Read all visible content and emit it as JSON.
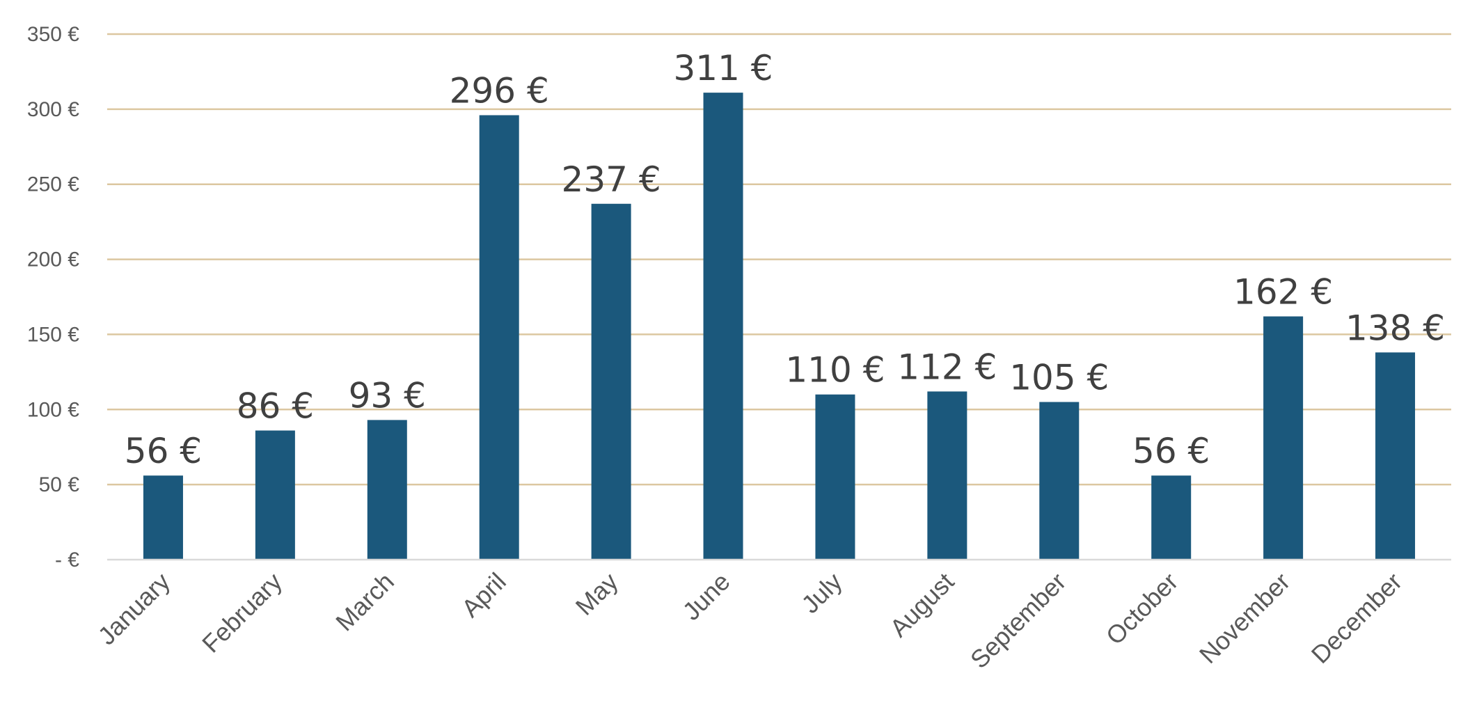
{
  "chart_data": {
    "type": "bar",
    "categories": [
      "January",
      "February",
      "March",
      "April",
      "May",
      "June",
      "July",
      "August",
      "September",
      "October",
      "November",
      "December"
    ],
    "values": [
      56,
      86,
      93,
      296,
      237,
      311,
      110,
      112,
      105,
      56,
      162,
      138
    ],
    "data_labels": [
      "56 €",
      "86 €",
      "93 €",
      "296 €",
      "237 €",
      "311 €",
      "110 €",
      "112 €",
      "105 €",
      "56 €",
      "162 €",
      "138 €"
    ],
    "y_ticks": [
      0,
      50,
      100,
      150,
      200,
      250,
      300,
      350
    ],
    "y_tick_labels": [
      "-  €",
      "50 €",
      "100 €",
      "150 €",
      "200 €",
      "250 €",
      "300 €",
      "350 €"
    ],
    "ylim": [
      0,
      350
    ],
    "grid": true,
    "legend": "none",
    "colors": {
      "bar": "#1b587c",
      "grid": "#dcc7a0",
      "axis": "#d9d9d9",
      "tick_text": "#595959",
      "data_label_text": "#404040"
    }
  }
}
